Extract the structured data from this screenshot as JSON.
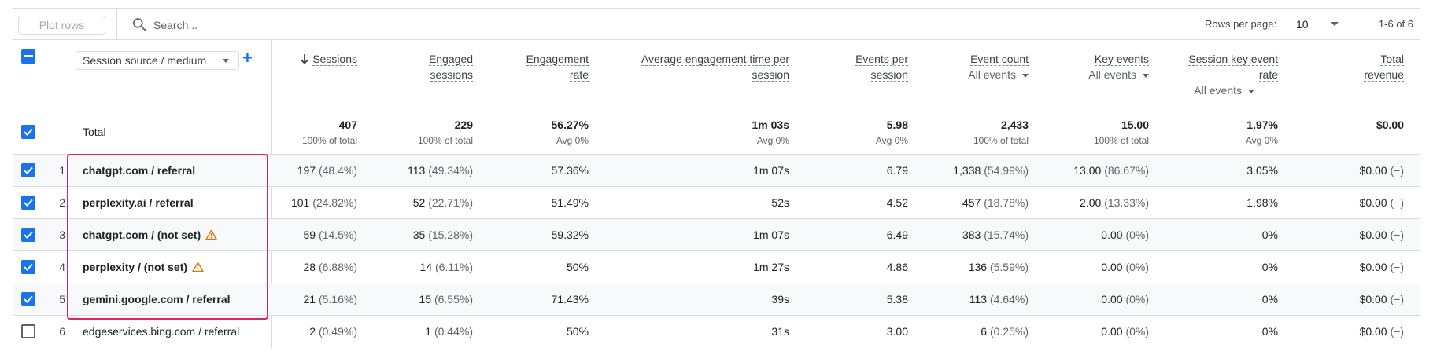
{
  "toolbar": {
    "plot_rows_label": "Plot rows",
    "search_placeholder": "Search...",
    "rows_per_page_label": "Rows per page:",
    "rows_per_page_value": "10",
    "page_info": "1-6 of 6"
  },
  "dimension": {
    "selector_label": "Session source / medium",
    "add_label": "+"
  },
  "columns": [
    {
      "key": "sessions",
      "title": "Sessions",
      "sorted": true
    },
    {
      "key": "engaged_sessions",
      "title_line1": "Engaged",
      "title_line2": "sessions"
    },
    {
      "key": "engagement_rate",
      "title_line1": "Engagement",
      "title_line2": "rate"
    },
    {
      "key": "avg_engagement_time",
      "title_line1": "Average engagement time per",
      "title_line2": "session"
    },
    {
      "key": "events_per_session",
      "title_line1": "Events per",
      "title_line2": "session"
    },
    {
      "key": "event_count",
      "title": "Event count",
      "filter": "All events"
    },
    {
      "key": "key_events",
      "title": "Key events",
      "filter": "All events"
    },
    {
      "key": "session_key_event_rate",
      "title_line1": "Session key event",
      "title_line2": "rate",
      "filter": "All events"
    },
    {
      "key": "total_revenue",
      "title_line1": "Total",
      "title_line2": "revenue"
    }
  ],
  "total": {
    "label": "Total",
    "values": [
      "407",
      "229",
      "56.27%",
      "1m 03s",
      "5.98",
      "2,433",
      "15.00",
      "1.97%",
      "$0.00"
    ],
    "subs": [
      "100% of total",
      "100% of total",
      "Avg 0%",
      "Avg 0%",
      "Avg 0%",
      "100% of total",
      "100% of total",
      "Avg 0%",
      ""
    ]
  },
  "rows": [
    {
      "num": "1",
      "name": "chatgpt.com / referral",
      "warn": false,
      "checked": true,
      "sessions": "197",
      "sessions_pct": "(48.4%)",
      "engaged": "113",
      "engaged_pct": "(49.34%)",
      "rate": "57.36%",
      "avg_time": "1m 07s",
      "eps": "6.79",
      "events": "1,338",
      "events_pct": "(54.99%)",
      "key": "13.00",
      "key_pct": "(86.67%)",
      "sker": "3.05%",
      "revenue": "$0.00",
      "revenue_pct": "(−)"
    },
    {
      "num": "2",
      "name": "perplexity.ai / referral",
      "warn": false,
      "checked": true,
      "sessions": "101",
      "sessions_pct": "(24.82%)",
      "engaged": "52",
      "engaged_pct": "(22.71%)",
      "rate": "51.49%",
      "avg_time": "52s",
      "eps": "4.52",
      "events": "457",
      "events_pct": "(18.78%)",
      "key": "2.00",
      "key_pct": "(13.33%)",
      "sker": "1.98%",
      "revenue": "$0.00",
      "revenue_pct": "(−)"
    },
    {
      "num": "3",
      "name": "chatgpt.com / (not set)",
      "warn": true,
      "checked": true,
      "sessions": "59",
      "sessions_pct": "(14.5%)",
      "engaged": "35",
      "engaged_pct": "(15.28%)",
      "rate": "59.32%",
      "avg_time": "1m 07s",
      "eps": "6.49",
      "events": "383",
      "events_pct": "(15.74%)",
      "key": "0.00",
      "key_pct": "(0%)",
      "sker": "0%",
      "revenue": "$0.00",
      "revenue_pct": "(−)"
    },
    {
      "num": "4",
      "name": "perplexity / (not set)",
      "warn": true,
      "checked": true,
      "sessions": "28",
      "sessions_pct": "(6.88%)",
      "engaged": "14",
      "engaged_pct": "(6.11%)",
      "rate": "50%",
      "avg_time": "1m 27s",
      "eps": "4.86",
      "events": "136",
      "events_pct": "(5.59%)",
      "key": "0.00",
      "key_pct": "(0%)",
      "sker": "0%",
      "revenue": "$0.00",
      "revenue_pct": "(−)"
    },
    {
      "num": "5",
      "name": "gemini.google.com / referral",
      "warn": false,
      "checked": true,
      "sessions": "21",
      "sessions_pct": "(5.16%)",
      "engaged": "15",
      "engaged_pct": "(6.55%)",
      "rate": "71.43%",
      "avg_time": "39s",
      "eps": "5.38",
      "events": "113",
      "events_pct": "(4.64%)",
      "key": "0.00",
      "key_pct": "(0%)",
      "sker": "0%",
      "revenue": "$0.00",
      "revenue_pct": "(−)"
    },
    {
      "num": "6",
      "name": "edgeservices.bing.com / referral",
      "warn": false,
      "checked": false,
      "sessions": "2",
      "sessions_pct": "(0.49%)",
      "engaged": "1",
      "engaged_pct": "(0.44%)",
      "rate": "50%",
      "avg_time": "31s",
      "eps": "3.00",
      "events": "6",
      "events_pct": "(0.25%)",
      "key": "0.00",
      "key_pct": "(0%)",
      "sker": "0%",
      "revenue": "$0.00",
      "revenue_pct": "(−)"
    }
  ],
  "colors": {
    "accent": "#1a73e8",
    "highlight": "#e0245e",
    "warning": "#e37400"
  },
  "icons": {
    "search": "search-icon",
    "sort": "arrow-down-icon",
    "warning": "warning-icon"
  }
}
